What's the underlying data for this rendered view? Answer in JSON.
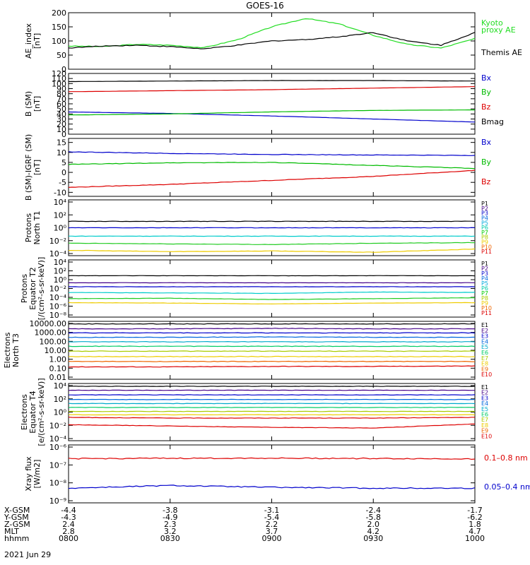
{
  "title": "GOES-16",
  "date": "2021 Jun 29",
  "chart_data": [
    {
      "type": "line",
      "ylabel": [
        "AE_index",
        "[nT]"
      ],
      "ylim": [
        0,
        200
      ],
      "yticks": [
        "0",
        "50",
        "100",
        "150",
        "200"
      ],
      "x": [
        "0800",
        "0810",
        "0820",
        "0830",
        "0840",
        "0850",
        "0900",
        "0910",
        "0920",
        "0930",
        "0940",
        "0950",
        "1000"
      ],
      "series": [
        {
          "name": "Kyoto proxy AE",
          "color": "#22dd22",
          "values": [
            82,
            80,
            88,
            85,
            76,
            105,
            150,
            180,
            160,
            120,
            88,
            75,
            108
          ]
        },
        {
          "name": "Themis AE",
          "color": "#000000",
          "values": [
            75,
            82,
            85,
            80,
            72,
            85,
            100,
            105,
            115,
            130,
            100,
            85,
            130
          ]
        }
      ],
      "legend": [
        {
          "text": "Kyoto",
          "color": "#22dd22"
        },
        {
          "text": "proxy AE",
          "color": "#22dd22"
        },
        {
          "text": "Themis AE",
          "color": "#000000"
        }
      ]
    },
    {
      "type": "line",
      "ylabel": [
        "B (SM)",
        "[nT]"
      ],
      "ylim": [
        0,
        120
      ],
      "yticks": [
        "0",
        "10",
        "20",
        "30",
        "40",
        "50",
        "60",
        "70",
        "80",
        "90",
        "100",
        "110",
        "120"
      ],
      "x": [
        "0800",
        "0830",
        "0900",
        "0930",
        "1000"
      ],
      "series": [
        {
          "name": "Bx",
          "color": "#0000cc",
          "values": [
            44,
            41,
            36,
            30,
            24
          ]
        },
        {
          "name": "By",
          "color": "#00bb00",
          "values": [
            38,
            40,
            44,
            47,
            48
          ]
        },
        {
          "name": "Bz",
          "color": "#dd0000",
          "values": [
            84,
            86,
            88,
            91,
            94
          ]
        },
        {
          "name": "Bmag",
          "color": "#000000",
          "values": [
            104,
            105,
            106,
            106,
            105
          ]
        }
      ],
      "legend": [
        {
          "text": "Bx",
          "color": "#0000cc"
        },
        {
          "text": "By",
          "color": "#00bb00"
        },
        {
          "text": "Bz",
          "color": "#dd0000"
        },
        {
          "text": "Bmag",
          "color": "#000000"
        }
      ]
    },
    {
      "type": "line",
      "ylabel": [
        "B (SM)-IGRF (SM)",
        "[nT]"
      ],
      "ylim": [
        -12,
        17
      ],
      "yticks": [
        "-10",
        "-5",
        "0",
        "5",
        "10",
        "15"
      ],
      "x": [
        "0800",
        "0830",
        "0900",
        "0930",
        "1000"
      ],
      "series": [
        {
          "name": "Bx",
          "color": "#0000cc",
          "values": [
            10.3,
            9.5,
            9.0,
            8.7,
            8.5
          ]
        },
        {
          "name": "By",
          "color": "#00bb00",
          "values": [
            4.0,
            4.8,
            5.0,
            3.5,
            2.0
          ]
        },
        {
          "name": "Bz",
          "color": "#dd0000",
          "values": [
            -7.5,
            -6.0,
            -4.0,
            -2.0,
            1.0
          ]
        }
      ],
      "legend": [
        {
          "text": "Bx",
          "color": "#0000cc"
        },
        {
          "text": "By",
          "color": "#00bb00"
        },
        {
          "text": "Bz",
          "color": "#dd0000"
        }
      ]
    },
    {
      "type": "line",
      "scale": "log",
      "ylabel": [
        "Protons",
        "North T1"
      ],
      "ylim_exp": [
        -4.8,
        4
      ],
      "yticks": [
        "10⁴",
        "10²",
        "10⁰",
        "10⁻²",
        "10⁻⁴"
      ],
      "x": [
        "0800",
        "0830",
        "0900",
        "0930",
        "1000"
      ],
      "series": [
        {
          "name": "P1",
          "color": "#000000",
          "values_log10": [
            1.0,
            1.0,
            1.0,
            1.0,
            1.0
          ]
        },
        {
          "name": "P3",
          "color": "#0000cc",
          "values_log10": [
            0.0,
            0.0,
            0.0,
            0.0,
            0.0
          ]
        },
        {
          "name": "P5",
          "color": "#00cccc",
          "values_log10": [
            -1.3,
            -1.3,
            -1.3,
            -1.3,
            -1.3
          ]
        },
        {
          "name": "P8",
          "color": "#22cc22",
          "values_log10": [
            -2.4,
            -2.5,
            -2.6,
            -2.4,
            -2.3
          ]
        },
        {
          "name": "P9",
          "color": "#eecc00",
          "values_log10": [
            -3.5,
            -3.7,
            -3.6,
            -3.8,
            -3.3
          ]
        }
      ],
      "legend": [
        {
          "text": "P1",
          "color": "#000000"
        },
        {
          "text": "P2",
          "color": "#440088"
        },
        {
          "text": "P3",
          "color": "#0000cc"
        },
        {
          "text": "P4",
          "color": "#0066dd"
        },
        {
          "text": "P5",
          "color": "#00aadd"
        },
        {
          "text": "P6",
          "color": "#00ccaa"
        },
        {
          "text": "P7",
          "color": "#00cc00"
        },
        {
          "text": "P8",
          "color": "#aacc00"
        },
        {
          "text": "P9",
          "color": "#eecc00"
        },
        {
          "text": "P10",
          "color": "#ee6600"
        },
        {
          "text": "P11",
          "color": "#dd0000"
        }
      ]
    },
    {
      "type": "line",
      "scale": "log",
      "ylabel": [
        "Protons",
        "Equator T2",
        "[/(cm²-s-sr-keV)]"
      ],
      "ylim_exp": [
        -9,
        4
      ],
      "yticks": [
        "10⁴",
        "10²",
        "10⁰",
        "10⁻²",
        "10⁻⁴",
        "10⁻⁶",
        "10⁻⁸"
      ],
      "x": [
        "0800",
        "0830",
        "0900",
        "0930",
        "1000"
      ],
      "series": [
        {
          "name": "P1",
          "color": "#000000",
          "values_log10": [
            0.9,
            0.9,
            0.9,
            0.9,
            0.9
          ]
        },
        {
          "name": "P3",
          "color": "#440088",
          "values_log10": [
            -0.7,
            -0.7,
            -0.7,
            -0.7,
            -0.7
          ]
        },
        {
          "name": "P4",
          "color": "#0000cc",
          "values_log10": [
            -1.6,
            -1.6,
            -1.6,
            -1.6,
            -1.6
          ]
        },
        {
          "name": "P5",
          "color": "#00cccc",
          "values_log10": [
            -2.9,
            -3.0,
            -3.1,
            -2.8,
            -2.9
          ]
        },
        {
          "name": "P7",
          "color": "#22cc22",
          "values_log10": [
            -4.3,
            -4.2,
            -4.5,
            -4.3,
            -4.1
          ]
        },
        {
          "name": "P9",
          "color": "#eecc00",
          "values_log10": [
            -5.2,
            -5.3,
            -5.5,
            -5.3,
            -5.2
          ]
        }
      ],
      "legend": [
        {
          "text": "P1",
          "color": "#000000"
        },
        {
          "text": "P2",
          "color": "#440088"
        },
        {
          "text": "P3",
          "color": "#0000cc"
        },
        {
          "text": "P4",
          "color": "#0066dd"
        },
        {
          "text": "P5",
          "color": "#00aadd"
        },
        {
          "text": "P6",
          "color": "#00ccaa"
        },
        {
          "text": "P7",
          "color": "#00cc00"
        },
        {
          "text": "P8",
          "color": "#aacc00"
        },
        {
          "text": "P9",
          "color": "#eecc00"
        },
        {
          "text": "P10",
          "color": "#ee6600"
        },
        {
          "text": "P11",
          "color": "#dd0000"
        }
      ]
    },
    {
      "type": "line",
      "scale": "log",
      "ylabel": [
        "Electrons",
        "North T3"
      ],
      "ylim_exp": [
        -2,
        4
      ],
      "yticks": [
        "10000.00",
        "1000.00",
        "100.00",
        "10.00",
        "1.00",
        "0.10",
        "0.01"
      ],
      "x": [
        "0800",
        "0830",
        "0900",
        "0930",
        "1000"
      ],
      "series": [
        {
          "name": "E1",
          "color": "#000000",
          "values_log10": [
            3.95,
            3.95,
            3.95,
            3.95,
            3.95
          ]
        },
        {
          "name": "E2",
          "color": "#440088",
          "values_log10": [
            3.4,
            3.4,
            3.45,
            3.4,
            3.4
          ]
        },
        {
          "name": "E3",
          "color": "#0000cc",
          "values_log10": [
            2.95,
            2.95,
            2.95,
            2.95,
            2.95
          ]
        },
        {
          "name": "E4",
          "color": "#0066dd",
          "values_log10": [
            2.45,
            2.45,
            2.5,
            2.45,
            2.45
          ]
        },
        {
          "name": "E5",
          "color": "#00aacc",
          "values_log10": [
            1.95,
            1.95,
            1.95,
            1.95,
            1.95
          ]
        },
        {
          "name": "E6",
          "color": "#00cc66",
          "values_log10": [
            1.45,
            1.45,
            1.45,
            1.45,
            1.45
          ]
        },
        {
          "name": "E7",
          "color": "#aacc00",
          "values_log10": [
            0.9,
            0.9,
            0.9,
            0.9,
            0.9
          ]
        },
        {
          "name": "E8",
          "color": "#eecc00",
          "values_log10": [
            0.3,
            0.3,
            0.3,
            0.3,
            0.3
          ]
        },
        {
          "name": "E9",
          "color": "#ee6600",
          "values_log10": [
            -0.25,
            -0.25,
            -0.25,
            -0.25,
            -0.25
          ]
        },
        {
          "name": "E10",
          "color": "#dd0000",
          "values_log10": [
            -0.85,
            -0.85,
            -0.8,
            -0.8,
            -0.75
          ]
        }
      ],
      "legend": [
        {
          "text": "E1",
          "color": "#000000"
        },
        {
          "text": "E2",
          "color": "#440088"
        },
        {
          "text": "E3",
          "color": "#0000cc"
        },
        {
          "text": "E4",
          "color": "#0066dd"
        },
        {
          "text": "E5",
          "color": "#00aacc"
        },
        {
          "text": "E6",
          "color": "#00cc66"
        },
        {
          "text": "E7",
          "color": "#aacc00"
        },
        {
          "text": "E8",
          "color": "#eecc00"
        },
        {
          "text": "E9",
          "color": "#ee6600"
        },
        {
          "text": "E10",
          "color": "#dd0000"
        }
      ]
    },
    {
      "type": "line",
      "scale": "log",
      "ylabel": [
        "Electrons",
        "Equator T4",
        "[e/(cm²-s-sr-keV)]"
      ],
      "ylim_exp": [
        -4,
        4
      ],
      "yticks": [
        "10⁴",
        "10²",
        "10⁰",
        "10⁻²",
        "10⁻⁴"
      ],
      "x": [
        "0800",
        "0830",
        "0900",
        "0930",
        "1000"
      ],
      "series": [
        {
          "name": "E1",
          "color": "#000000",
          "values_log10": [
            3.9,
            3.9,
            3.9,
            3.9,
            3.9
          ]
        },
        {
          "name": "E2",
          "color": "#440088",
          "values_log10": [
            3.3,
            3.3,
            3.3,
            3.3,
            3.3
          ]
        },
        {
          "name": "E3",
          "color": "#0000cc",
          "values_log10": [
            2.6,
            2.6,
            2.6,
            2.6,
            2.6
          ]
        },
        {
          "name": "E4",
          "color": "#0066dd",
          "values_log10": [
            1.9,
            1.9,
            1.9,
            1.9,
            1.9
          ]
        },
        {
          "name": "E5",
          "color": "#00aacc",
          "values_log10": [
            1.3,
            1.3,
            1.3,
            1.3,
            1.3
          ]
        },
        {
          "name": "E6",
          "color": "#00cc66",
          "values_log10": [
            0.7,
            0.7,
            0.7,
            0.7,
            0.7
          ]
        },
        {
          "name": "E7",
          "color": "#aacc00",
          "values_log10": [
            0.1,
            0.1,
            0.1,
            0.1,
            0.1
          ]
        },
        {
          "name": "E8",
          "color": "#eecc00",
          "values_log10": [
            -0.4,
            -0.4,
            -0.4,
            -0.4,
            -0.4
          ]
        },
        {
          "name": "E9",
          "color": "#dd0000",
          "values_log10": [
            -0.8,
            -0.9,
            -0.9,
            -0.9,
            -0.8
          ]
        },
        {
          "name": "E10",
          "color": "#dd0000",
          "values_log10": [
            -1.9,
            -2.1,
            -2.3,
            -2.4,
            -1.8
          ]
        }
      ],
      "legend": [
        {
          "text": "E1",
          "color": "#000000"
        },
        {
          "text": "E2",
          "color": "#440088"
        },
        {
          "text": "E3",
          "color": "#0000cc"
        },
        {
          "text": "E4",
          "color": "#0066dd"
        },
        {
          "text": "E5",
          "color": "#00aacc"
        },
        {
          "text": "E6",
          "color": "#00cc66"
        },
        {
          "text": "E7",
          "color": "#aacc00"
        },
        {
          "text": "E8",
          "color": "#eecc00"
        },
        {
          "text": "E9",
          "color": "#ee6600"
        },
        {
          "text": "E10",
          "color": "#dd0000"
        }
      ]
    },
    {
      "type": "line",
      "scale": "log",
      "ylabel": [
        "Xray flux",
        "[W/m2]"
      ],
      "ylim_exp": [
        -9,
        -6
      ],
      "yticks": [
        "10⁻⁶",
        "10⁻⁷",
        "10⁻⁸",
        "10⁻⁹"
      ],
      "x": [
        "0800",
        "0830",
        "0900",
        "0930",
        "1000"
      ],
      "series": [
        {
          "name": "0.1-0.8 nm",
          "color": "#dd0000",
          "values_log10": [
            -6.65,
            -6.63,
            -6.62,
            -6.64,
            -6.66
          ]
        },
        {
          "name": "0.05-0.4 nm",
          "color": "#0000cc",
          "values_log10": [
            -8.3,
            -8.15,
            -8.25,
            -8.3,
            -8.3
          ]
        }
      ],
      "legend": [
        {
          "text": "0.1–0.8 nm",
          "color": "#dd0000"
        },
        {
          "text": "0.05–0.4 nm",
          "color": "#0000cc"
        }
      ]
    }
  ],
  "footer": {
    "rows": [
      {
        "label": "X-GSM",
        "values": [
          "-4.4",
          "-3.8",
          "-3.1",
          "-2.4",
          "-1.7"
        ]
      },
      {
        "label": "Y-GSM",
        "values": [
          "-4.3",
          "-4.9",
          "-5.4",
          "-5.8",
          "-6.2"
        ]
      },
      {
        "label": "Z-GSM",
        "values": [
          "2.4",
          "2.3",
          "2.2",
          "2.0",
          "1.8"
        ]
      },
      {
        "label": "MLT",
        "values": [
          "2.8",
          "3.2",
          "3.7",
          "4.2",
          "4.7"
        ]
      },
      {
        "label": "hhmm",
        "values": [
          "0800",
          "0830",
          "0900",
          "0930",
          "1000"
        ]
      }
    ]
  }
}
